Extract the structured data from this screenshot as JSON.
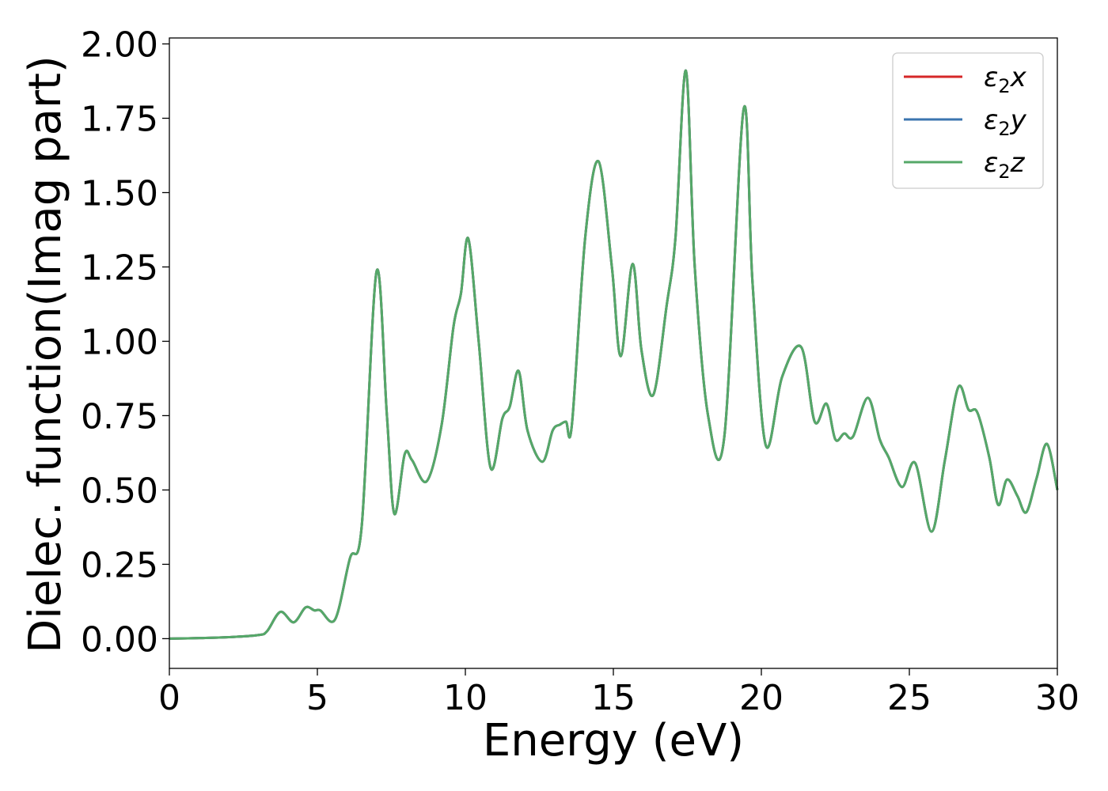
{
  "chart_data": {
    "type": "line",
    "xlabel": "Energy (eV)",
    "ylabel": "Dielec. function(Imag part)",
    "xlim": [
      0,
      30
    ],
    "ylim": [
      -0.1,
      2.02
    ],
    "xticks": [
      "0",
      "5",
      "10",
      "15",
      "20",
      "25",
      "30"
    ],
    "yticks": [
      "0.00",
      "0.25",
      "0.50",
      "0.75",
      "1.00",
      "1.25",
      "1.50",
      "1.75",
      "2.00"
    ],
    "grid": false,
    "legend_position": "top-right",
    "series": [
      {
        "name": "ε2x",
        "legend_main": "ε",
        "legend_sub": "2",
        "legend_tail": "x",
        "color": "#d62728"
      },
      {
        "name": "ε2y",
        "legend_main": "ε",
        "legend_sub": "2",
        "legend_tail": "y",
        "color": "#3b75af"
      },
      {
        "name": "ε2z",
        "legend_main": "ε",
        "legend_sub": "2",
        "legend_tail": "z",
        "color": "#55a868"
      }
    ],
    "x": [
      0,
      1,
      2,
      3,
      3.3,
      3.75,
      4.2,
      4.6,
      4.9,
      5.1,
      5.6,
      6.1,
      6.5,
      7.0,
      7.35,
      7.6,
      7.95,
      8.2,
      8.7,
      9.2,
      9.6,
      9.85,
      10.1,
      10.45,
      10.85,
      11.25,
      11.5,
      11.8,
      12.1,
      12.6,
      12.95,
      13.2,
      13.4,
      13.6,
      14.05,
      14.5,
      14.95,
      15.25,
      15.65,
      15.95,
      16.35,
      16.8,
      17.1,
      17.45,
      17.75,
      18.2,
      18.75,
      19.4,
      19.7,
      20.15,
      20.7,
      21.35,
      21.8,
      22.2,
      22.5,
      22.8,
      23.1,
      23.6,
      24.0,
      24.3,
      24.75,
      25.2,
      25.75,
      26.2,
      26.65,
      27.0,
      27.3,
      27.7,
      28.0,
      28.3,
      28.65,
      28.95,
      29.3,
      29.65,
      30.0
    ],
    "values": [
      0,
      0.002,
      0.005,
      0.012,
      0.025,
      0.09,
      0.055,
      0.105,
      0.095,
      0.095,
      0.065,
      0.27,
      0.38,
      1.235,
      0.75,
      0.42,
      0.62,
      0.6,
      0.53,
      0.72,
      1.05,
      1.16,
      1.345,
      1.0,
      0.575,
      0.74,
      0.78,
      0.9,
      0.7,
      0.595,
      0.7,
      0.72,
      0.73,
      0.72,
      1.35,
      1.605,
      1.25,
      0.95,
      1.26,
      0.97,
      0.82,
      1.12,
      1.35,
      1.91,
      1.25,
      0.75,
      0.68,
      1.78,
      1.2,
      0.65,
      0.88,
      0.98,
      0.73,
      0.79,
      0.67,
      0.69,
      0.68,
      0.81,
      0.67,
      0.61,
      0.51,
      0.59,
      0.36,
      0.6,
      0.845,
      0.77,
      0.76,
      0.61,
      0.45,
      0.535,
      0.48,
      0.425,
      0.54,
      0.655,
      0.5
    ]
  }
}
